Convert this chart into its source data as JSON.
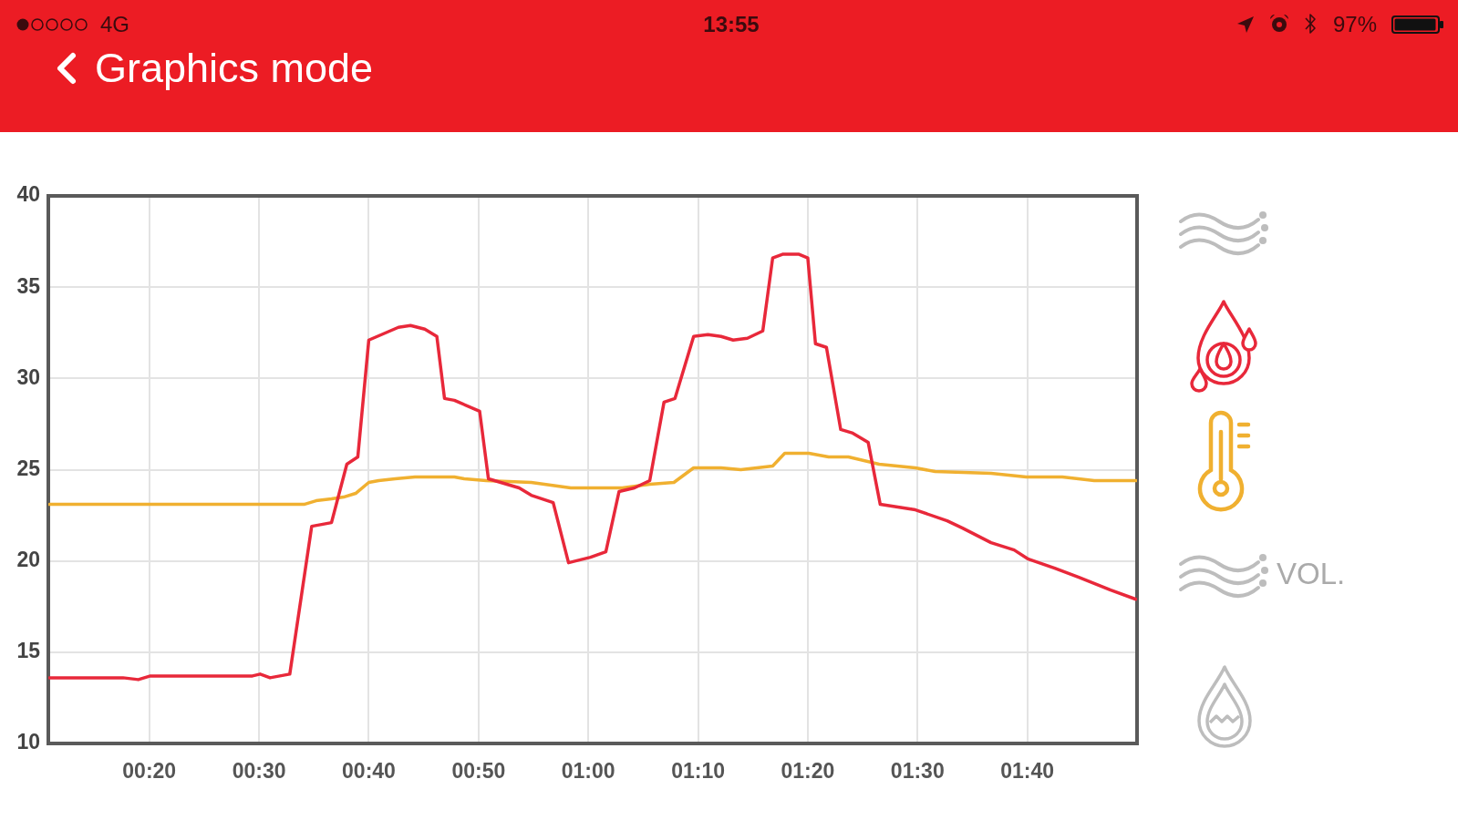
{
  "chart_data": {
    "type": "line",
    "title": "Graphics mode",
    "annotations": [
      "4G",
      "13:55",
      "97%",
      "VOL."
    ],
    "xlim": [
      10.8,
      110
    ],
    "xticks": [
      {
        "value": 20,
        "label": "00:20"
      },
      {
        "value": 30,
        "label": "00:30"
      },
      {
        "value": 40,
        "label": "00:40"
      },
      {
        "value": 50,
        "label": "00:50"
      },
      {
        "value": 60,
        "label": "01:00"
      },
      {
        "value": 70,
        "label": "01:10"
      },
      {
        "value": 80,
        "label": "01:20"
      },
      {
        "value": 90,
        "label": "01:30"
      },
      {
        "value": 100,
        "label": "01:40"
      }
    ],
    "ylim": [
      10,
      40
    ],
    "yticks": [
      10,
      15,
      20,
      25,
      30,
      35,
      40
    ],
    "grid": true,
    "marker": "none",
    "line_style": "solid",
    "series": [
      {
        "color": "#e8283a",
        "x": [
          10.9,
          17.6,
          19.0,
          20.1,
          29.4,
          30.1,
          31.0,
          32.8,
          34.8,
          36.6,
          38.0,
          39.0,
          40.0,
          42.7,
          43.8,
          45.1,
          46.2,
          46.9,
          47.8,
          50.1,
          50.9,
          53.7,
          54.8,
          56.8,
          58.2,
          60.2,
          61.6,
          62.8,
          64.2,
          65.6,
          66.9,
          67.9,
          69.6,
          70.9,
          72.1,
          73.2,
          74.5,
          75.9,
          76.8,
          77.7,
          79.2,
          80.0,
          80.7,
          81.7,
          83.0,
          84.1,
          85.5,
          86.6,
          89.8,
          92.7,
          94.1,
          96.7,
          98.8,
          100.1,
          102.5,
          104.7,
          107.6,
          109.9
        ],
        "values": [
          13.6,
          13.6,
          13.5,
          13.7,
          13.7,
          13.8,
          13.6,
          13.8,
          21.9,
          22.1,
          25.3,
          25.7,
          32.1,
          32.8,
          32.9,
          32.7,
          32.3,
          28.9,
          28.8,
          28.2,
          24.5,
          24.0,
          23.6,
          23.2,
          19.9,
          20.2,
          20.5,
          23.8,
          24.0,
          24.4,
          28.7,
          28.9,
          32.3,
          32.4,
          32.3,
          32.1,
          32.2,
          32.6,
          36.6,
          36.8,
          36.8,
          36.6,
          31.9,
          31.7,
          27.2,
          27.0,
          26.5,
          23.1,
          22.8,
          22.2,
          21.8,
          21.0,
          20.6,
          20.1,
          19.6,
          19.1,
          18.4,
          17.9
        ]
      },
      {
        "color": "#f0b030",
        "x": [
          10.9,
          34.1,
          35.2,
          36.6,
          37.7,
          38.8,
          40.0,
          40.9,
          42.4,
          44.2,
          47.8,
          48.7,
          50.7,
          54.8,
          58.4,
          63.1,
          65.6,
          67.8,
          69.6,
          72.1,
          73.9,
          76.8,
          77.9,
          80.1,
          81.9,
          83.7,
          86.5,
          89.8,
          91.6,
          96.7,
          99.9,
          103.2,
          106.1,
          109.9
        ],
        "values": [
          23.1,
          23.1,
          23.3,
          23.4,
          23.5,
          23.7,
          24.3,
          24.4,
          24.5,
          24.6,
          24.6,
          24.5,
          24.4,
          24.3,
          24.0,
          24.0,
          24.2,
          24.3,
          25.1,
          25.1,
          25.0,
          25.2,
          25.9,
          25.9,
          25.7,
          25.7,
          25.3,
          25.1,
          24.9,
          24.8,
          24.6,
          24.6,
          24.4,
          24.4
        ]
      }
    ]
  }
}
